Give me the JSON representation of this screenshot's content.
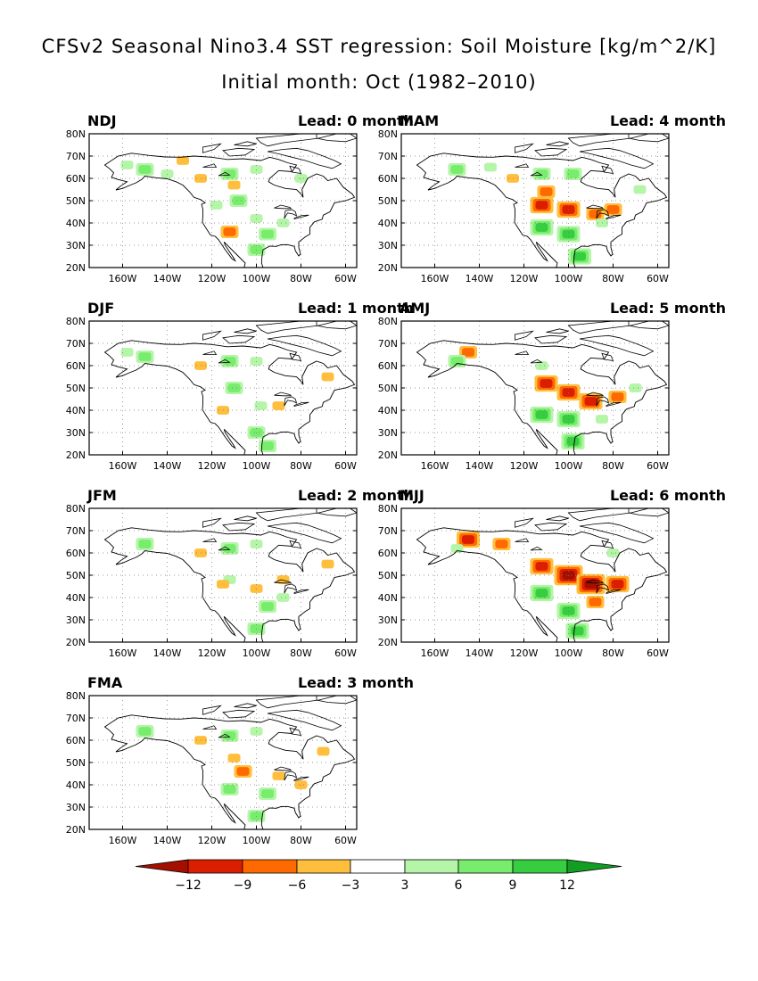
{
  "title": "CFSv2 Seasonal Nino3.4 SST regression: Soil Moisture [kg/m^2/K]",
  "subtitle": "Initial month: Oct (1982–2010)",
  "chart_data": [
    {
      "type": "heatmap",
      "season": "NDJ",
      "lead_label": "Lead: 0 month",
      "lead": 0,
      "xlim": [
        -175,
        -55
      ],
      "ylim": [
        20,
        80
      ],
      "x_ticks": [
        "160W",
        "140W",
        "120W",
        "100W",
        "80W",
        "60W"
      ],
      "y_ticks": [
        "20N",
        "30N",
        "40N",
        "50N",
        "60N",
        "70N",
        "80N"
      ],
      "anomalies": [
        {
          "lon": -150,
          "lat": 64,
          "level": 2
        },
        {
          "lon": -158,
          "lat": 66,
          "level": 1
        },
        {
          "lon": -140,
          "lat": 62,
          "level": 1
        },
        {
          "lon": -112,
          "lat": 62,
          "level": 2
        },
        {
          "lon": -100,
          "lat": 64,
          "level": 1
        },
        {
          "lon": -118,
          "lat": 48,
          "level": 1
        },
        {
          "lon": -108,
          "lat": 50,
          "level": 2
        },
        {
          "lon": -100,
          "lat": 42,
          "level": 1
        },
        {
          "lon": -95,
          "lat": 35,
          "level": 2
        },
        {
          "lon": -100,
          "lat": 28,
          "level": 2
        },
        {
          "lon": -88,
          "lat": 40,
          "level": 1
        },
        {
          "lon": -112,
          "lat": 36,
          "level": -2
        },
        {
          "lon": -133,
          "lat": 68,
          "level": -1
        },
        {
          "lon": -125,
          "lat": 60,
          "level": -1
        },
        {
          "lon": -80,
          "lat": 60,
          "level": 1
        },
        {
          "lon": -110,
          "lat": 57,
          "level": -1
        }
      ]
    },
    {
      "type": "heatmap",
      "season": "MAM",
      "lead_label": "Lead: 4 month",
      "lead": 4,
      "xlim": [
        -175,
        -55
      ],
      "ylim": [
        20,
        80
      ],
      "x_ticks": [
        "160W",
        "140W",
        "120W",
        "100W",
        "80W",
        "60W"
      ],
      "y_ticks": [
        "20N",
        "30N",
        "40N",
        "50N",
        "60N",
        "70N",
        "80N"
      ],
      "anomalies": [
        {
          "lon": -150,
          "lat": 64,
          "level": 2
        },
        {
          "lon": -135,
          "lat": 65,
          "level": 1
        },
        {
          "lon": -112,
          "lat": 62,
          "level": 2
        },
        {
          "lon": -98,
          "lat": 62,
          "level": 2
        },
        {
          "lon": -110,
          "lat": 54,
          "level": -2
        },
        {
          "lon": -112,
          "lat": 48,
          "level": -3
        },
        {
          "lon": -100,
          "lat": 46,
          "level": -3
        },
        {
          "lon": -88,
          "lat": 44,
          "level": -2
        },
        {
          "lon": -80,
          "lat": 46,
          "level": -2
        },
        {
          "lon": -100,
          "lat": 35,
          "level": 3
        },
        {
          "lon": -112,
          "lat": 38,
          "level": 3
        },
        {
          "lon": -95,
          "lat": 25,
          "level": 3
        },
        {
          "lon": -85,
          "lat": 40,
          "level": 1
        },
        {
          "lon": -68,
          "lat": 55,
          "level": 1
        },
        {
          "lon": -125,
          "lat": 60,
          "level": -1
        }
      ]
    },
    {
      "type": "heatmap",
      "season": "DJF",
      "lead_label": "Lead: 1 month",
      "lead": 1,
      "xlim": [
        -175,
        -55
      ],
      "ylim": [
        20,
        80
      ],
      "x_ticks": [
        "160W",
        "140W",
        "120W",
        "100W",
        "80W",
        "60W"
      ],
      "y_ticks": [
        "20N",
        "30N",
        "40N",
        "50N",
        "60N",
        "70N",
        "80N"
      ],
      "anomalies": [
        {
          "lon": -150,
          "lat": 64,
          "level": 2
        },
        {
          "lon": -158,
          "lat": 66,
          "level": 1
        },
        {
          "lon": -112,
          "lat": 62,
          "level": 2
        },
        {
          "lon": -100,
          "lat": 62,
          "level": 1
        },
        {
          "lon": -110,
          "lat": 50,
          "level": 2
        },
        {
          "lon": -98,
          "lat": 42,
          "level": 1
        },
        {
          "lon": -100,
          "lat": 30,
          "level": 2
        },
        {
          "lon": -95,
          "lat": 24,
          "level": 2
        },
        {
          "lon": -115,
          "lat": 40,
          "level": -1
        },
        {
          "lon": -90,
          "lat": 42,
          "level": -1
        },
        {
          "lon": -68,
          "lat": 55,
          "level": -1
        },
        {
          "lon": -125,
          "lat": 60,
          "level": -1
        }
      ]
    },
    {
      "type": "heatmap",
      "season": "AMJ",
      "lead_label": "Lead: 5 month",
      "lead": 5,
      "xlim": [
        -175,
        -55
      ],
      "ylim": [
        20,
        80
      ],
      "x_ticks": [
        "160W",
        "140W",
        "120W",
        "100W",
        "80W",
        "60W"
      ],
      "y_ticks": [
        "20N",
        "30N",
        "40N",
        "50N",
        "60N",
        "70N",
        "80N"
      ],
      "anomalies": [
        {
          "lon": -145,
          "lat": 66,
          "level": -2
        },
        {
          "lon": -150,
          "lat": 62,
          "level": 2
        },
        {
          "lon": -112,
          "lat": 60,
          "level": 1
        },
        {
          "lon": -110,
          "lat": 52,
          "level": -3
        },
        {
          "lon": -100,
          "lat": 48,
          "level": -3
        },
        {
          "lon": -90,
          "lat": 44,
          "level": -3
        },
        {
          "lon": -78,
          "lat": 46,
          "level": -2
        },
        {
          "lon": -100,
          "lat": 36,
          "level": 3
        },
        {
          "lon": -112,
          "lat": 38,
          "level": 3
        },
        {
          "lon": -98,
          "lat": 26,
          "level": 3
        },
        {
          "lon": -70,
          "lat": 50,
          "level": 1
        },
        {
          "lon": -85,
          "lat": 36,
          "level": 1
        }
      ]
    },
    {
      "type": "heatmap",
      "season": "JFM",
      "lead_label": "Lead: 2 month",
      "lead": 2,
      "xlim": [
        -175,
        -55
      ],
      "ylim": [
        20,
        80
      ],
      "x_ticks": [
        "160W",
        "140W",
        "120W",
        "100W",
        "80W",
        "60W"
      ],
      "y_ticks": [
        "20N",
        "30N",
        "40N",
        "50N",
        "60N",
        "70N",
        "80N"
      ],
      "anomalies": [
        {
          "lon": -150,
          "lat": 64,
          "level": 2
        },
        {
          "lon": -112,
          "lat": 62,
          "level": 2
        },
        {
          "lon": -100,
          "lat": 64,
          "level": 1
        },
        {
          "lon": -112,
          "lat": 48,
          "level": 1
        },
        {
          "lon": -100,
          "lat": 44,
          "level": -1
        },
        {
          "lon": -95,
          "lat": 36,
          "level": 2
        },
        {
          "lon": -100,
          "lat": 26,
          "level": 2
        },
        {
          "lon": -115,
          "lat": 46,
          "level": -1
        },
        {
          "lon": -88,
          "lat": 48,
          "level": -1
        },
        {
          "lon": -68,
          "lat": 55,
          "level": -1
        },
        {
          "lon": -125,
          "lat": 60,
          "level": -1
        },
        {
          "lon": -88,
          "lat": 40,
          "level": 1
        }
      ]
    },
    {
      "type": "heatmap",
      "season": "MJJ",
      "lead_label": "Lead: 6 month",
      "lead": 6,
      "xlim": [
        -175,
        -55
      ],
      "ylim": [
        20,
        80
      ],
      "x_ticks": [
        "160W",
        "140W",
        "120W",
        "100W",
        "80W",
        "60W"
      ],
      "y_ticks": [
        "20N",
        "30N",
        "40N",
        "50N",
        "60N",
        "70N",
        "80N"
      ],
      "anomalies": [
        {
          "lon": -145,
          "lat": 66,
          "level": -3
        },
        {
          "lon": -130,
          "lat": 64,
          "level": -2
        },
        {
          "lon": -150,
          "lat": 62,
          "level": 1
        },
        {
          "lon": -112,
          "lat": 54,
          "level": -3
        },
        {
          "lon": -100,
          "lat": 50,
          "level": -4
        },
        {
          "lon": -90,
          "lat": 46,
          "level": -4
        },
        {
          "lon": -78,
          "lat": 46,
          "level": -3
        },
        {
          "lon": -88,
          "lat": 38,
          "level": -2
        },
        {
          "lon": -100,
          "lat": 34,
          "level": 3
        },
        {
          "lon": -112,
          "lat": 42,
          "level": 3
        },
        {
          "lon": -96,
          "lat": 25,
          "level": 3
        },
        {
          "lon": -80,
          "lat": 60,
          "level": 1
        }
      ]
    },
    {
      "type": "heatmap",
      "season": "FMA",
      "lead_label": "Lead: 3 month",
      "lead": 3,
      "xlim": [
        -175,
        -55
      ],
      "ylim": [
        20,
        80
      ],
      "x_ticks": [
        "160W",
        "140W",
        "120W",
        "100W",
        "80W",
        "60W"
      ],
      "y_ticks": [
        "20N",
        "30N",
        "40N",
        "50N",
        "60N",
        "70N",
        "80N"
      ],
      "anomalies": [
        {
          "lon": -150,
          "lat": 64,
          "level": 2
        },
        {
          "lon": -112,
          "lat": 62,
          "level": 2
        },
        {
          "lon": -100,
          "lat": 64,
          "level": 1
        },
        {
          "lon": -110,
          "lat": 52,
          "level": -1
        },
        {
          "lon": -106,
          "lat": 46,
          "level": -2
        },
        {
          "lon": -90,
          "lat": 44,
          "level": -1
        },
        {
          "lon": -95,
          "lat": 36,
          "level": 2
        },
        {
          "lon": -100,
          "lat": 26,
          "level": 2
        },
        {
          "lon": -112,
          "lat": 38,
          "level": 2
        },
        {
          "lon": -80,
          "lat": 40,
          "level": -1
        },
        {
          "lon": -70,
          "lat": 55,
          "level": -1
        },
        {
          "lon": -125,
          "lat": 60,
          "level": -1
        }
      ]
    }
  ],
  "colorbar": {
    "boundaries": [
      "−12",
      "−9",
      "−6",
      "−3",
      "3",
      "6",
      "9",
      "12"
    ],
    "colors": {
      "neg4": "#a50f00",
      "neg3": "#dc1e00",
      "neg2": "#ff6a00",
      "neg1": "#ffbe3c",
      "zero": "#ffffff",
      "pos1": "#b4f5a8",
      "pos2": "#78ec6c",
      "pos3": "#36cd40",
      "pos4": "#119e22"
    }
  }
}
